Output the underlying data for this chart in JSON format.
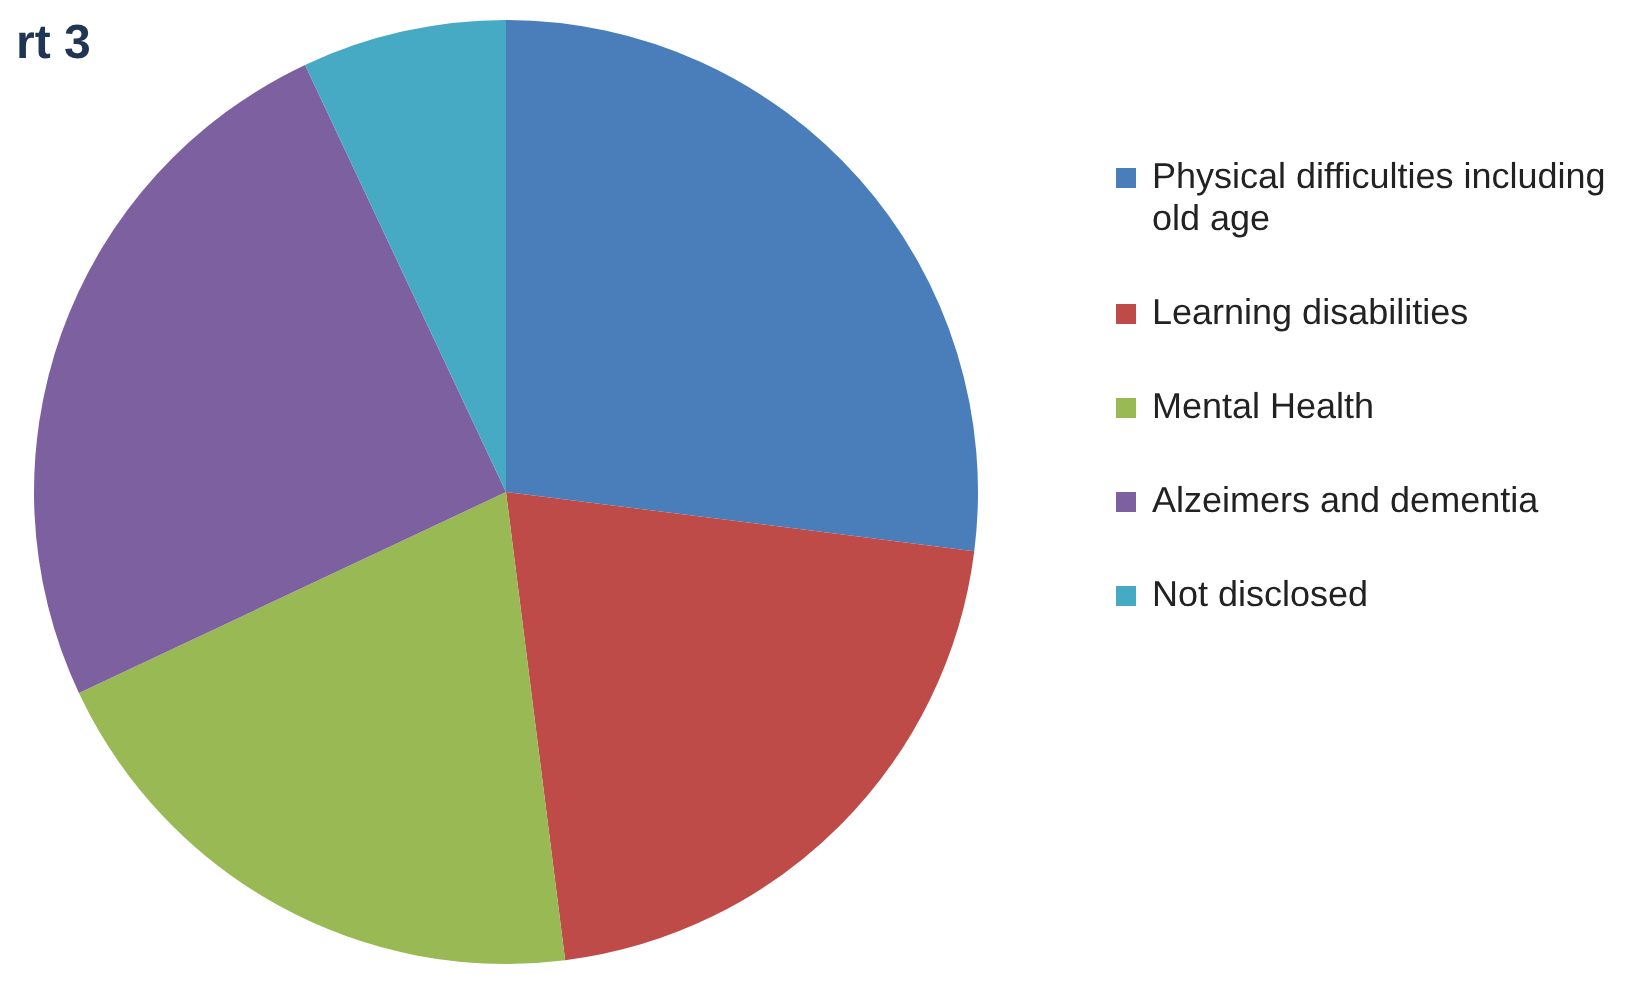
{
  "chart_data": {
    "type": "pie",
    "title": "rt 3",
    "categories": [
      "Physical difficulties including old age",
      "Learning disabilities",
      "Mental Health",
      "Alzeimers and dementia",
      "Not disclosed"
    ],
    "values": [
      27,
      21,
      20,
      25,
      7
    ],
    "colors": [
      "#4a7ebb",
      "#be4b48",
      "#98b954",
      "#7d60a0",
      "#46aac5"
    ],
    "legend": "right"
  }
}
